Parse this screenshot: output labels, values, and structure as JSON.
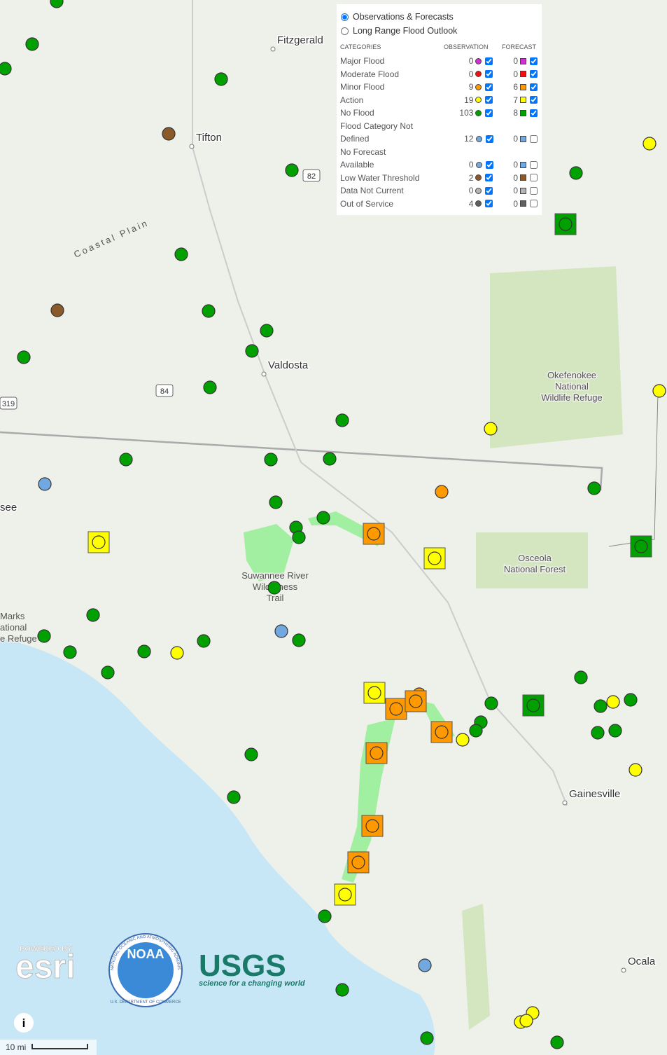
{
  "legend": {
    "options": [
      "Observations & Forecasts",
      "Long Range Flood Outlook"
    ],
    "selected_option": 0,
    "headers": {
      "categories": "CATEGORIES",
      "observation": "OBSERVATION",
      "forecast": "FORECAST"
    },
    "rows": [
      {
        "label": "Major Flood",
        "observation": 0,
        "forecast": 0,
        "color": "#cc33cc",
        "observation_checked": true,
        "forecast_checked": true
      },
      {
        "label": "Moderate Flood",
        "observation": 0,
        "forecast": 0,
        "color": "#ee1111",
        "observation_checked": true,
        "forecast_checked": true
      },
      {
        "label": "Minor Flood",
        "observation": 9,
        "forecast": 6,
        "color": "#ff9900",
        "observation_checked": true,
        "forecast_checked": true
      },
      {
        "label": "Action",
        "observation": 19,
        "forecast": 7,
        "color": "#ffff00",
        "observation_checked": true,
        "forecast_checked": true
      },
      {
        "label": "No Flood",
        "observation": 103,
        "forecast": 8,
        "color": "#00a000",
        "observation_checked": true,
        "forecast_checked": true
      },
      {
        "label": "Flood Category Not Defined",
        "observation": 12,
        "forecast": 0,
        "color": "#72a8e0",
        "observation_checked": true,
        "forecast_checked": false
      },
      {
        "label": "No Forecast Available",
        "observation": 0,
        "forecast": 0,
        "color": "#72a8e0",
        "observation_checked": true,
        "forecast_checked": false
      },
      {
        "label": "Low Water Threshold",
        "observation": 2,
        "forecast": 0,
        "color": "#8b5a2b",
        "observation_checked": true,
        "forecast_checked": false
      },
      {
        "label": "Data Not Current",
        "observation": 0,
        "forecast": 0,
        "color": "#b4b4b4",
        "observation_checked": true,
        "forecast_checked": false
      },
      {
        "label": "Out of Service",
        "observation": 4,
        "forecast": 0,
        "color": "#606060",
        "observation_checked": true,
        "forecast_checked": false
      }
    ]
  },
  "map_labels": {
    "places": [
      "Fitzgerald",
      "Tifton",
      "Valdosta",
      "Gainesville",
      "Ocala",
      "see"
    ],
    "region": "Coastal Plain",
    "highways": [
      "82",
      "84",
      "319"
    ],
    "areas": [
      [
        "Okefenokee",
        "National",
        "Wildlife Refuge"
      ],
      [
        "Suwannee River",
        "Wilderness",
        "Trail"
      ],
      [
        "Osceola",
        "National Forest"
      ],
      [
        "Marks",
        "ational",
        "e Refuge"
      ]
    ]
  },
  "attribution": {
    "esri_top": "POWERED BY",
    "esri": "esri",
    "noaa": "NOAA",
    "noaa_ring": "NATIONAL OCEANIC AND ATMOSPHERIC ADMINISTRATION",
    "noaa_bottom": "U.S. DEPARTMENT OF COMMERCE",
    "usgs": "USGS",
    "usgs_tagline": "science for a changing world"
  },
  "scale": "10 mi",
  "info": "i"
}
